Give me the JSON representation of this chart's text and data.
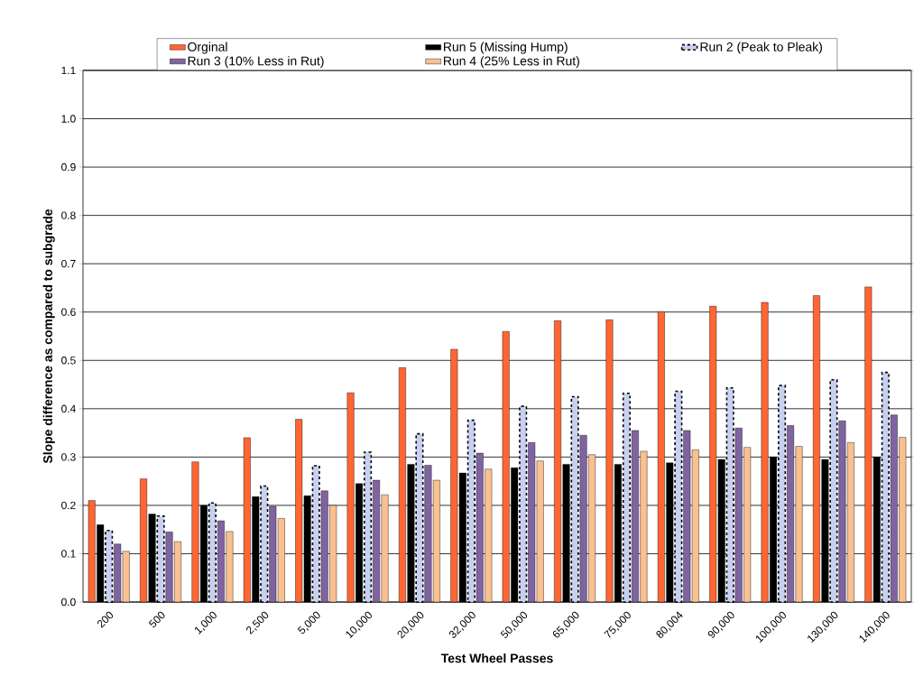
{
  "chart_data": {
    "type": "bar",
    "xlabel": "Test Wheel Passes",
    "ylabel": "Slope difference as compared to subgrade",
    "categories": [
      "200",
      "500",
      "1,000",
      "2,500",
      "5,000",
      "10,000",
      "20,000",
      "32,000",
      "50,000",
      "65,000",
      "75,000",
      "80,004",
      "90,000",
      "100,000",
      "130,000",
      "140,000"
    ],
    "series": [
      {
        "name": "Orginal",
        "color": "#ff6633",
        "values": [
          0.21,
          0.255,
          0.29,
          0.34,
          0.378,
          0.433,
          0.485,
          0.523,
          0.56,
          0.582,
          0.584,
          0.601,
          0.612,
          0.62,
          0.634,
          0.652
        ]
      },
      {
        "name": "Run 5 (Missing Hump)",
        "color": "#000000",
        "values": [
          0.16,
          0.182,
          0.2,
          0.218,
          0.22,
          0.245,
          0.285,
          0.267,
          0.278,
          0.285,
          0.285,
          0.288,
          0.295,
          0.3,
          0.295,
          0.3
        ]
      },
      {
        "name": "Run 2 (Peak to Pleak)",
        "color": "#c8d0f0",
        "line_style": "dashed",
        "values": [
          0.148,
          0.178,
          0.205,
          0.24,
          0.282,
          0.31,
          0.348,
          0.376,
          0.405,
          0.425,
          0.432,
          0.436,
          0.443,
          0.448,
          0.46,
          0.475
        ]
      },
      {
        "name": "Run 3 (10% Less in Rut)",
        "color": "#8064a2",
        "values": [
          0.12,
          0.145,
          0.168,
          0.198,
          0.23,
          0.252,
          0.283,
          0.308,
          0.33,
          0.345,
          0.355,
          0.355,
          0.36,
          0.365,
          0.375,
          0.387
        ]
      },
      {
        "name": "Run 4 (25% Less in Rut)",
        "color": "#fac090",
        "values": [
          0.105,
          0.125,
          0.146,
          0.173,
          0.2,
          0.222,
          0.252,
          0.275,
          0.292,
          0.305,
          0.312,
          0.315,
          0.32,
          0.322,
          0.33,
          0.341
        ]
      }
    ],
    "ylim": [
      0,
      1.1
    ],
    "yticks": [
      {
        "value": 0,
        "label": "0.0"
      },
      {
        "value": 0.1,
        "label": "0.1"
      },
      {
        "value": 0.2,
        "label": "0.2"
      },
      {
        "value": 0.3,
        "label": "0.3"
      },
      {
        "value": 0.4,
        "label": "0.4"
      },
      {
        "value": 0.5,
        "label": "0.5"
      },
      {
        "value": 0.6,
        "label": "0.6"
      },
      {
        "value": 0.7,
        "label": "0.7"
      },
      {
        "value": 0.8,
        "label": "0.8"
      },
      {
        "value": 0.9,
        "label": "0.9"
      },
      {
        "value": 1,
        "label": "1.0"
      },
      {
        "value": 1.1,
        "label": "1.1"
      }
    ],
    "grid": "y",
    "legend": "top"
  }
}
